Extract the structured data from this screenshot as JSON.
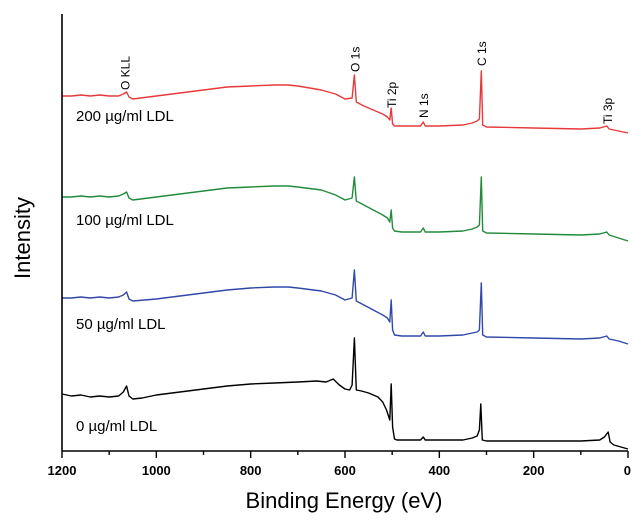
{
  "chart_data": {
    "type": "line",
    "xlabel": "Binding Energy (eV)",
    "ylabel": "Intensity",
    "xlim": [
      1200,
      0
    ],
    "x_reversed": true,
    "x_ticks": [
      1200,
      1000,
      800,
      600,
      400,
      200,
      0
    ],
    "y_ticks_shown": false,
    "grid": false,
    "legend": "none",
    "series": [
      {
        "name": "0  µg/ml LDL",
        "color": "#000000",
        "points": [
          [
            1200,
            394
          ],
          [
            1180,
            396
          ],
          [
            1160,
            395
          ],
          [
            1140,
            397
          ],
          [
            1120,
            396
          ],
          [
            1100,
            397
          ],
          [
            1080,
            396
          ],
          [
            1070,
            392
          ],
          [
            1063,
            386
          ],
          [
            1058,
            396
          ],
          [
            1050,
            399
          ],
          [
            1030,
            398
          ],
          [
            1000,
            395
          ],
          [
            950,
            392
          ],
          [
            900,
            389
          ],
          [
            850,
            386
          ],
          [
            800,
            384
          ],
          [
            750,
            383
          ],
          [
            700,
            382
          ],
          [
            660,
            381
          ],
          [
            640,
            382
          ],
          [
            625,
            379
          ],
          [
            612,
            385
          ],
          [
            600,
            389
          ],
          [
            590,
            390
          ],
          [
            585,
            385
          ],
          [
            580,
            338
          ],
          [
            576,
            390
          ],
          [
            565,
            391
          ],
          [
            550,
            393
          ],
          [
            530,
            397
          ],
          [
            520,
            402
          ],
          [
            512,
            410
          ],
          [
            505,
            420
          ],
          [
            502,
            384
          ],
          [
            499,
            427
          ],
          [
            495,
            439
          ],
          [
            490,
            440
          ],
          [
            470,
            440
          ],
          [
            440,
            440
          ],
          [
            434,
            437
          ],
          [
            430,
            440
          ],
          [
            400,
            440
          ],
          [
            350,
            440
          ],
          [
            330,
            438
          ],
          [
            320,
            436
          ],
          [
            315,
            430
          ],
          [
            312,
            404
          ],
          [
            309,
            440
          ],
          [
            300,
            441
          ],
          [
            200,
            441
          ],
          [
            100,
            441
          ],
          [
            60,
            440
          ],
          [
            50,
            437
          ],
          [
            42,
            432
          ],
          [
            38,
            442
          ],
          [
            30,
            445
          ],
          [
            15,
            447
          ],
          [
            0,
            449
          ]
        ]
      },
      {
        "name": "50  µg/ml LDL",
        "color": "#3048a8",
        "points": [
          [
            1200,
            298
          ],
          [
            1180,
            298
          ],
          [
            1160,
            297
          ],
          [
            1140,
            298
          ],
          [
            1120,
            297
          ],
          [
            1100,
            298
          ],
          [
            1080,
            297
          ],
          [
            1070,
            295
          ],
          [
            1063,
            292
          ],
          [
            1058,
            299
          ],
          [
            1050,
            301
          ],
          [
            1000,
            299
          ],
          [
            950,
            296
          ],
          [
            900,
            293
          ],
          [
            850,
            290
          ],
          [
            800,
            288
          ],
          [
            750,
            287
          ],
          [
            720,
            287
          ],
          [
            700,
            288
          ],
          [
            650,
            291
          ],
          [
            620,
            295
          ],
          [
            600,
            300
          ],
          [
            585,
            298
          ],
          [
            580,
            270
          ],
          [
            576,
            301
          ],
          [
            560,
            305
          ],
          [
            540,
            310
          ],
          [
            520,
            315
          ],
          [
            510,
            318
          ],
          [
            505,
            322
          ],
          [
            502,
            300
          ],
          [
            499,
            330
          ],
          [
            495,
            335
          ],
          [
            480,
            336
          ],
          [
            440,
            336
          ],
          [
            434,
            332
          ],
          [
            430,
            336
          ],
          [
            400,
            336
          ],
          [
            350,
            335
          ],
          [
            330,
            333
          ],
          [
            320,
            332
          ],
          [
            315,
            330
          ],
          [
            311,
            283
          ],
          [
            308,
            335
          ],
          [
            300,
            337
          ],
          [
            200,
            338
          ],
          [
            100,
            339
          ],
          [
            60,
            338
          ],
          [
            45,
            336
          ],
          [
            40,
            339
          ],
          [
            20,
            341
          ],
          [
            0,
            344
          ]
        ]
      },
      {
        "name": "100 µg/ml LDL",
        "color": "#228b3b",
        "points": [
          [
            1200,
            197
          ],
          [
            1180,
            197
          ],
          [
            1160,
            196
          ],
          [
            1140,
            197
          ],
          [
            1120,
            196
          ],
          [
            1100,
            197
          ],
          [
            1080,
            196
          ],
          [
            1070,
            194
          ],
          [
            1063,
            192
          ],
          [
            1058,
            198
          ],
          [
            1050,
            200
          ],
          [
            1000,
            197
          ],
          [
            950,
            194
          ],
          [
            900,
            191
          ],
          [
            850,
            188
          ],
          [
            800,
            187
          ],
          [
            750,
            186
          ],
          [
            720,
            186
          ],
          [
            700,
            187
          ],
          [
            650,
            190
          ],
          [
            620,
            195
          ],
          [
            600,
            200
          ],
          [
            585,
            198
          ],
          [
            580,
            177
          ],
          [
            576,
            201
          ],
          [
            560,
            205
          ],
          [
            540,
            210
          ],
          [
            520,
            215
          ],
          [
            510,
            218
          ],
          [
            505,
            222
          ],
          [
            502,
            210
          ],
          [
            499,
            228
          ],
          [
            495,
            231
          ],
          [
            480,
            232
          ],
          [
            440,
            232
          ],
          [
            434,
            228
          ],
          [
            430,
            232
          ],
          [
            400,
            232
          ],
          [
            350,
            231
          ],
          [
            330,
            229
          ],
          [
            320,
            227
          ],
          [
            315,
            225
          ],
          [
            311,
            177
          ],
          [
            308,
            231
          ],
          [
            300,
            233
          ],
          [
            200,
            234
          ],
          [
            100,
            235
          ],
          [
            60,
            234
          ],
          [
            45,
            232
          ],
          [
            40,
            235
          ],
          [
            20,
            238
          ],
          [
            0,
            241
          ]
        ]
      },
      {
        "name": "200  µg/ml LDL",
        "color": "#e63a3a",
        "points": [
          [
            1200,
            96
          ],
          [
            1180,
            96
          ],
          [
            1160,
            95
          ],
          [
            1140,
            96
          ],
          [
            1120,
            95
          ],
          [
            1100,
            96
          ],
          [
            1080,
            96
          ],
          [
            1070,
            94
          ],
          [
            1063,
            92
          ],
          [
            1058,
            97
          ],
          [
            1050,
            99
          ],
          [
            1000,
            96
          ],
          [
            950,
            93
          ],
          [
            900,
            90
          ],
          [
            850,
            87
          ],
          [
            800,
            86
          ],
          [
            750,
            85
          ],
          [
            720,
            85
          ],
          [
            700,
            86
          ],
          [
            650,
            90
          ],
          [
            620,
            94
          ],
          [
            600,
            99
          ],
          [
            585,
            98
          ],
          [
            580,
            75
          ],
          [
            576,
            102
          ],
          [
            560,
            106
          ],
          [
            540,
            110
          ],
          [
            520,
            114
          ],
          [
            510,
            117
          ],
          [
            505,
            120
          ],
          [
            502,
            108
          ],
          [
            499,
            124
          ],
          [
            495,
            126
          ],
          [
            480,
            126
          ],
          [
            440,
            126
          ],
          [
            434,
            122
          ],
          [
            430,
            126
          ],
          [
            400,
            126
          ],
          [
            350,
            125
          ],
          [
            330,
            123
          ],
          [
            320,
            121
          ],
          [
            315,
            119
          ],
          [
            311,
            71
          ],
          [
            308,
            125
          ],
          [
            300,
            127
          ],
          [
            200,
            128
          ],
          [
            100,
            129
          ],
          [
            60,
            128
          ],
          [
            45,
            126
          ],
          [
            40,
            129
          ],
          [
            20,
            131
          ],
          [
            0,
            133
          ]
        ]
      }
    ],
    "peak_labels": [
      {
        "text": "O KLL",
        "x": 1065
      },
      {
        "text": "O 1s",
        "x": 578
      },
      {
        "text": "Ti 2p",
        "x": 500
      },
      {
        "text": "N 1s",
        "x": 432
      },
      {
        "text": "C 1s",
        "x": 310
      },
      {
        "text": "Ti 3p",
        "x": 42
      }
    ]
  }
}
